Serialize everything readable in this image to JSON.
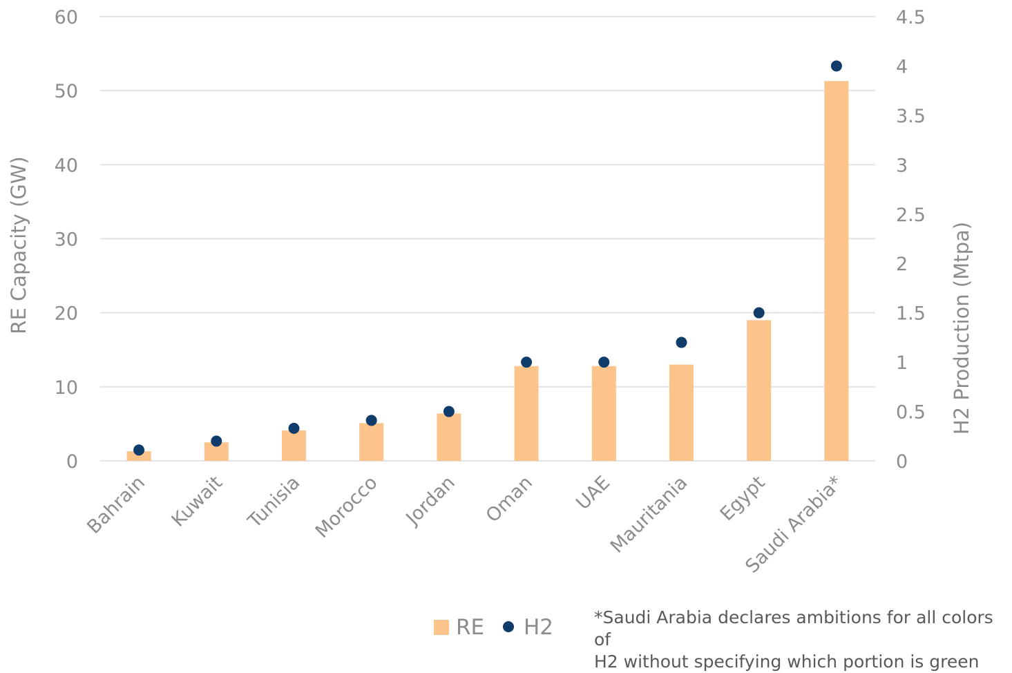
{
  "chart_data": {
    "type": "bar",
    "categories": [
      "Bahrain",
      "Kuwait",
      "Tunisia",
      "Morocco",
      "Jordan",
      "Oman",
      "UAE",
      "Mauritania",
      "Egypt",
      "Saudi Arabia*"
    ],
    "series": [
      {
        "name": "RE",
        "type": "bar",
        "axis": "left",
        "color": "#fcc38b",
        "values": [
          1.3,
          2.5,
          4.1,
          5.1,
          6.4,
          12.8,
          12.8,
          13.0,
          19.0,
          51.3
        ]
      },
      {
        "name": "H2",
        "type": "scatter",
        "axis": "right",
        "color": "#0f3c6b",
        "values": [
          0.11,
          0.2,
          0.33,
          0.41,
          0.5,
          1.0,
          1.0,
          1.2,
          1.5,
          4.0
        ]
      }
    ],
    "ylabel": "RE Capacity (GW)",
    "y2label": "H2 Production (Mtpa)",
    "ylim": [
      0,
      60
    ],
    "y2lim": [
      0,
      4.5
    ],
    "yticks": [
      "0",
      "10",
      "20",
      "30",
      "40",
      "50",
      "60"
    ],
    "y2ticks": [
      "0",
      "0.5",
      "1",
      "1.5",
      "2",
      "2.5",
      "3",
      "3.5",
      "4",
      "4.5"
    ],
    "grid": true,
    "legend": {
      "position": "bottom-center",
      "entries": [
        "RE",
        "H2"
      ]
    }
  },
  "footnote": {
    "line1": "*Saudi Arabia declares ambitions for all colors of",
    "line2": "H2 without specifying which portion is green"
  }
}
